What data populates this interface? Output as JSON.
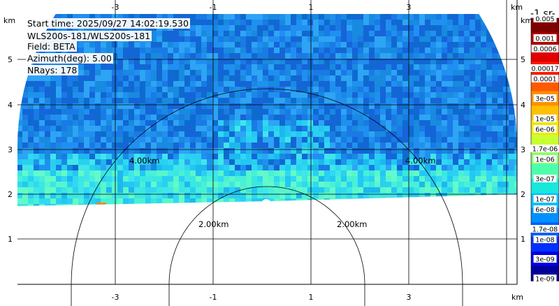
{
  "chart_data": {
    "type": "heatmap",
    "title": "",
    "info_lines": [
      "Start time: 2025/09/27 14:02:19.530",
      "WLS200s-181/WLS200s-181",
      "Field: BETA",
      "Azimuth(deg): 5.00",
      "NRays: 178"
    ],
    "axis_unit": "km",
    "x_ticks": [
      "-3",
      "-1",
      "1",
      "3"
    ],
    "y_ticks": [
      "5",
      "4",
      "3",
      "2",
      "1"
    ],
    "range_ring_labels": [
      "4.00km",
      "4.00km",
      "2.00km",
      "2.00km"
    ],
    "colorbar": {
      "unit_label": "-1 sr-",
      "top_label": "0.005",
      "labels": [
        "0.001",
        "0.0006",
        "0.00017",
        "0.0001",
        "3e-05",
        "1e-05",
        "6e-06",
        "1.7e-06",
        "1e-06",
        "3e-07",
        "1e-07",
        "6e-08",
        "1.7e-08",
        "1e-08",
        "3e-09",
        "1e-09"
      ],
      "colors": [
        "#7f0000",
        "#b00000",
        "#e00000",
        "#ff1a00",
        "#ff5a00",
        "#ff9000",
        "#ffc000",
        "#f0e800",
        "#c8ff30",
        "#8cff6a",
        "#4cffaa",
        "#18e8dc",
        "#00c0ff",
        "#0090ff",
        "#0060ff",
        "#0030ff",
        "#0000e0",
        "#00009a"
      ]
    }
  }
}
